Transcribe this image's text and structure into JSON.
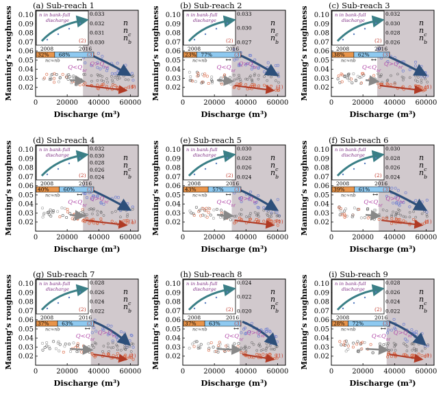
{
  "figure": {
    "y_axis_label": "Manning’s roughness",
    "x_axis_label": "Discharge (m³)",
    "legend": [
      "n",
      "nc",
      "nb"
    ],
    "inset_title": "n in bank-full discharge",
    "inset_years": [
      "2008",
      "2016"
    ],
    "flow_note": "nc≈nb",
    "q_label_low": "Q<Qbf",
    "q_label_high": "Q>Qbf",
    "colors": {
      "n": "#555555",
      "nc": "#d9603b",
      "nb": "#6f7fd0",
      "shade": "#c9bfc4",
      "pct_left": "#e8944a",
      "pct_right": "#8ec9f0"
    }
  },
  "chart_data": [
    {
      "type": "scatter",
      "title": "(a) Sub-reach 1",
      "xlabel": "Discharge (m³)",
      "ylabel": "Manning’s roughness",
      "xlim": [
        0,
        65000
      ],
      "ylim": [
        0.01,
        0.105
      ],
      "x_ticks": [
        "0",
        "20000",
        "40000",
        "60000"
      ],
      "y_ticks": [
        "0.02",
        "0.03",
        "0.04",
        "0.05",
        "0.06",
        "0.07",
        "0.08",
        "0.09",
        "0.10"
      ],
      "bankfull_discharge": 30000,
      "percent_left": "32%",
      "percent_right": "68%",
      "inset_y_ticks": [
        "0.033",
        "0.032",
        "0.031",
        "0.030"
      ]
    },
    {
      "type": "scatter",
      "title": "(b) Sub-reach 2",
      "xlabel": "Discharge (m³)",
      "ylabel": "Manning’s roughness",
      "xlim": [
        0,
        65000
      ],
      "ylim": [
        0.01,
        0.105
      ],
      "x_ticks": [
        "0",
        "20000",
        "40000",
        "60000"
      ],
      "y_ticks": [
        "0.02",
        "0.03",
        "0.04",
        "0.05",
        "0.06",
        "0.07",
        "0.08",
        "0.09",
        "0.10"
      ],
      "bankfull_discharge": 31000,
      "percent_left": "23%",
      "percent_right": "77%",
      "inset_y_ticks": [
        "0.033",
        "0.030",
        "0.027"
      ]
    },
    {
      "type": "scatter",
      "title": "(c) Sub-reach 3",
      "xlabel": "Discharge (m³)",
      "ylabel": "Manning’s roughness",
      "xlim": [
        0,
        65000
      ],
      "ylim": [
        0.01,
        0.105
      ],
      "x_ticks": [
        "0",
        "20000",
        "40000",
        "60000"
      ],
      "y_ticks": [
        "0.02",
        "0.03",
        "0.04",
        "0.05",
        "0.06",
        "0.07",
        "0.08",
        "0.09",
        "0.10"
      ],
      "bankfull_discharge": 29000,
      "percent_left": "38%",
      "percent_right": "62%",
      "inset_y_ticks": [
        "0.032",
        "0.030",
        "0.028",
        "0.026"
      ]
    },
    {
      "type": "scatter",
      "title": "(d) Sub-reach 4",
      "xlabel": "Discharge (m³)",
      "ylabel": "Manning’s roughness",
      "xlim": [
        0,
        65000
      ],
      "ylim": [
        0.01,
        0.105
      ],
      "x_ticks": [
        "0",
        "20000",
        "40000",
        "60000"
      ],
      "y_ticks": [
        "0.02",
        "0.03",
        "0.04",
        "0.05",
        "0.06",
        "0.07",
        "0.08",
        "0.09",
        "0.10"
      ],
      "bankfull_discharge": 30000,
      "percent_left": "40%",
      "percent_right": "60%",
      "inset_y_ticks": [
        "0.032",
        "0.030",
        "0.028",
        "0.026",
        "0.024"
      ]
    },
    {
      "type": "scatter",
      "title": "(e) Sub-reach 5",
      "xlabel": "Discharge (m³)",
      "ylabel": "Manning’s roughness",
      "xlim": [
        0,
        65000
      ],
      "ylim": [
        0.01,
        0.105
      ],
      "x_ticks": [
        "0",
        "20000",
        "40000",
        "60000"
      ],
      "y_ticks": [
        "0.02",
        "0.03",
        "0.04",
        "0.05",
        "0.06",
        "0.07",
        "0.08",
        "0.09",
        "0.10"
      ],
      "bankfull_discharge": 31000,
      "percent_left": "43%",
      "percent_right": "57%",
      "inset_y_ticks": [
        "0.030",
        "0.028",
        "0.026",
        "0.024"
      ]
    },
    {
      "type": "scatter",
      "title": "(f) Sub-reach 6",
      "xlabel": "Discharge (m³)",
      "ylabel": "Manning’s roughness",
      "xlim": [
        0,
        65000
      ],
      "ylim": [
        0.01,
        0.105
      ],
      "x_ticks": [
        "0",
        "20000",
        "40000",
        "60000"
      ],
      "y_ticks": [
        "0.02",
        "0.03",
        "0.04",
        "0.05",
        "0.06",
        "0.07",
        "0.08",
        "0.09",
        "0.10"
      ],
      "bankfull_discharge": 30000,
      "percent_left": "39%",
      "percent_right": "61%",
      "inset_y_ticks": [
        "0.030",
        "0.028",
        "0.026",
        "0.024"
      ]
    },
    {
      "type": "scatter",
      "title": "(g) Sub-reach 7",
      "xlabel": "Discharge (m³)",
      "ylabel": "Manning’s roughness",
      "xlim": [
        0,
        65000
      ],
      "ylim": [
        0.01,
        0.105
      ],
      "x_ticks": [
        "0",
        "20000",
        "40000",
        "60000"
      ],
      "y_ticks": [
        "0.02",
        "0.03",
        "0.04",
        "0.05",
        "0.06",
        "0.07",
        "0.08",
        "0.09",
        "0.10"
      ],
      "bankfull_discharge": 35000,
      "percent_left": "37%",
      "percent_right": "63%",
      "inset_y_ticks": [
        "0.028",
        "0.026",
        "0.024",
        "0.022"
      ]
    },
    {
      "type": "scatter",
      "title": "(h) Sub-reach 8",
      "xlabel": "Discharge (m³)",
      "ylabel": "Manning’s roughness",
      "xlim": [
        0,
        65000
      ],
      "ylim": [
        0.01,
        0.105
      ],
      "x_ticks": [
        "0",
        "20000",
        "40000",
        "60000"
      ],
      "y_ticks": [
        "0.02",
        "0.03",
        "0.04",
        "0.05",
        "0.06",
        "0.07",
        "0.08",
        "0.09",
        "0.10"
      ],
      "bankfull_discharge": 36000,
      "percent_left": "37%",
      "percent_right": "63%",
      "inset_y_ticks": [
        "0.024",
        "0.022",
        "0.020"
      ]
    },
    {
      "type": "scatter",
      "title": "(i) Sub-reach 9",
      "xlabel": "Discharge (m³)",
      "ylabel": "Manning’s roughness",
      "xlim": [
        0,
        65000
      ],
      "ylim": [
        0.01,
        0.105
      ],
      "x_ticks": [
        "0",
        "20000",
        "40000",
        "60000"
      ],
      "y_ticks": [
        "0.02",
        "0.03",
        "0.04",
        "0.05",
        "0.06",
        "0.07",
        "0.08",
        "0.09",
        "0.10"
      ],
      "bankfull_discharge": 35000,
      "percent_left": "28%",
      "percent_right": "72%",
      "inset_y_ticks": [
        "0.028",
        "0.026",
        "0.024",
        "0.022"
      ]
    }
  ]
}
